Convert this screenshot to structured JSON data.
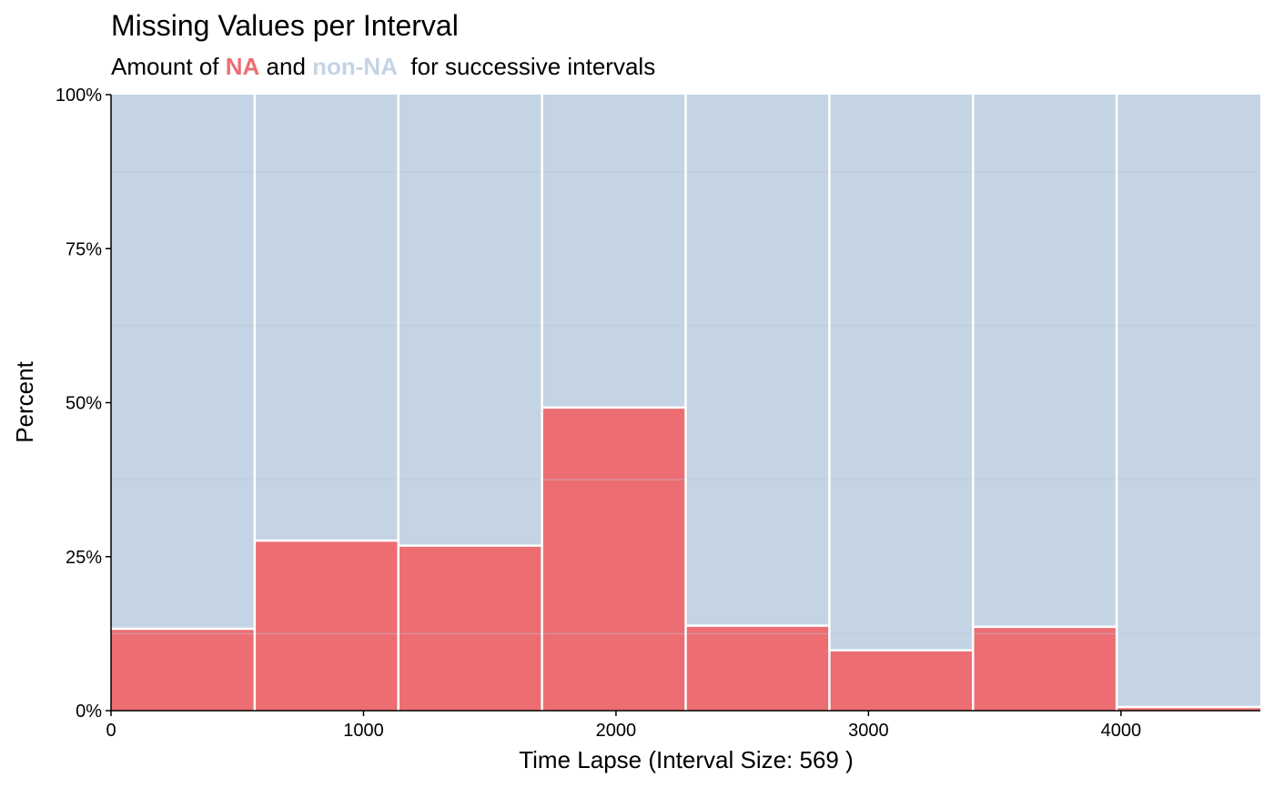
{
  "chart_data": {
    "type": "bar",
    "title": "Missing Values per Interval",
    "subtitle": {
      "prefix": "Amount of ",
      "na_label": "NA",
      "middle": " and ",
      "nonna_label": "non-NA",
      "suffix": "  for successive intervals"
    },
    "xlabel": "Time Lapse (Interval Size: 569 )",
    "ylabel": "Percent",
    "xlim": [
      0,
      4552
    ],
    "ylim": [
      0,
      100
    ],
    "x_ticks": [
      0,
      1000,
      2000,
      3000,
      4000
    ],
    "x_tick_labels": [
      "0",
      "1000",
      "2000",
      "3000",
      "4000"
    ],
    "y_ticks": [
      0,
      25,
      50,
      75,
      100
    ],
    "y_tick_labels": [
      "0%",
      "25%",
      "50%",
      "75%",
      "100%"
    ],
    "interval_size": 569,
    "interval_starts": [
      0,
      569,
      1138,
      1707,
      2276,
      2845,
      3414,
      3983
    ],
    "series": [
      {
        "name": "NA",
        "values": [
          13.3,
          27.6,
          26.8,
          49.2,
          13.8,
          9.8,
          13.6,
          0.6
        ]
      },
      {
        "name": "non-NA",
        "values": [
          86.7,
          72.4,
          73.2,
          50.8,
          86.2,
          90.2,
          86.4,
          99.4
        ]
      }
    ],
    "colors": {
      "na": "#EC6E73",
      "nonna": "#C4D4E5",
      "bar_border": "#ffffff",
      "grid": "#b7c3cf",
      "text": "#000000"
    },
    "grid": true,
    "legend": "none"
  }
}
